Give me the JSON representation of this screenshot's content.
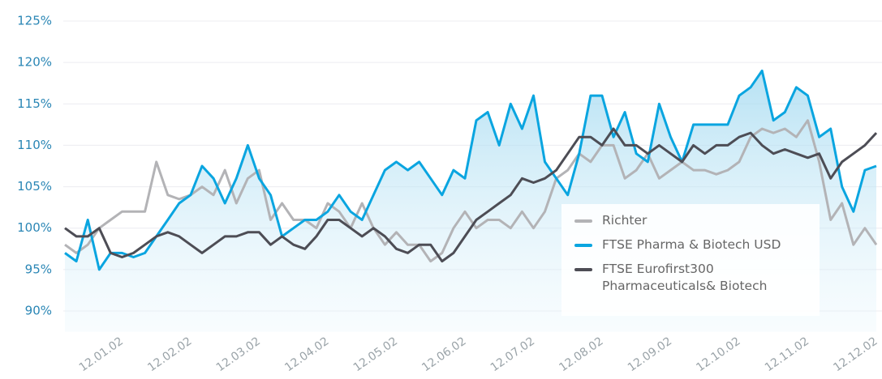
{
  "chart_data": {
    "type": "line",
    "categories": [
      null,
      null,
      null,
      null,
      null,
      "12.01.02",
      null,
      null,
      null,
      null,
      null,
      "12.02.02",
      null,
      null,
      null,
      null,
      null,
      "12.03.02",
      null,
      null,
      null,
      null,
      null,
      "12.04.02",
      null,
      null,
      null,
      null,
      null,
      "12.05.02",
      null,
      null,
      null,
      null,
      null,
      "12.06.02",
      null,
      null,
      null,
      null,
      null,
      "12.07.02",
      null,
      null,
      null,
      null,
      null,
      "12.08.02",
      null,
      null,
      null,
      null,
      null,
      "12.09.02",
      null,
      null,
      null,
      null,
      null,
      "12.10.02",
      null,
      null,
      null,
      null,
      null,
      "12.11.02",
      null,
      null,
      null,
      null,
      null,
      "12.12.02"
    ],
    "series": [
      {
        "name": "Richter",
        "color": "#b3b3b6",
        "values": [
          98,
          97,
          98,
          100,
          101,
          102,
          102,
          102,
          108,
          104,
          103.5,
          104,
          105,
          104,
          107,
          103,
          106,
          107,
          101,
          103,
          101,
          101,
          100,
          103,
          102,
          100,
          103,
          100,
          98,
          99.5,
          98,
          98,
          96,
          97,
          100,
          102,
          100,
          101,
          101,
          100,
          102,
          100,
          102,
          106,
          107,
          109,
          108,
          110,
          110,
          106,
          107,
          109,
          106,
          107,
          108,
          107,
          107,
          106.5,
          107,
          108,
          111,
          112,
          111.5,
          112,
          111,
          113,
          108,
          101,
          103,
          98,
          100,
          98
        ]
      },
      {
        "name": "FTSE Pharma & Biotech USD",
        "color": "#0aa5e0",
        "values": [
          97,
          96,
          101,
          95,
          97,
          97,
          96.5,
          97,
          99,
          101,
          103,
          104,
          107.5,
          106,
          103,
          106,
          110,
          106,
          104,
          99,
          100,
          101,
          101,
          102,
          104,
          102,
          101,
          104,
          107,
          108,
          107,
          108,
          106,
          104,
          107,
          106,
          113,
          114,
          110,
          115,
          112,
          116,
          108,
          106,
          104,
          109,
          116,
          116,
          111,
          114,
          109,
          108,
          115,
          111,
          108,
          112.5,
          112.5,
          112.5,
          112.5,
          116,
          117,
          119,
          113,
          114,
          117,
          116,
          111,
          112,
          105,
          102,
          107,
          107.5
        ]
      },
      {
        "name": "FTSE Eurofirst300 Pharmaceuticals& Biotech",
        "color": "#4d4d55",
        "values": [
          100,
          99,
          99,
          100,
          97,
          96.5,
          97,
          98,
          99,
          99.5,
          99,
          98,
          97,
          98,
          99,
          99,
          99.5,
          99.5,
          98,
          99,
          98,
          97.5,
          99,
          101,
          101,
          100,
          99,
          100,
          99,
          97.5,
          97,
          98,
          98,
          96,
          97,
          99,
          101,
          102,
          103,
          104,
          106,
          105.5,
          106,
          107,
          109,
          111,
          111,
          110,
          112,
          110,
          110,
          109,
          110,
          109,
          108,
          110,
          109,
          110,
          110,
          111,
          111.5,
          110,
          109,
          109.5,
          109,
          108.5,
          109,
          106,
          108,
          109,
          110,
          111.5
        ]
      }
    ],
    "ylim": [
      87.5,
      127
    ],
    "yticks": [
      {
        "value": 90,
        "label": "90%"
      },
      {
        "value": 95,
        "label": "95%"
      },
      {
        "value": 100,
        "label": "100%"
      },
      {
        "value": 105,
        "label": "105%"
      },
      {
        "value": 110,
        "label": "110%"
      },
      {
        "value": 115,
        "label": "115%"
      },
      {
        "value": 120,
        "label": "120%"
      },
      {
        "value": 125,
        "label": "125%"
      }
    ],
    "grid": true,
    "legend": "bottom-right"
  }
}
